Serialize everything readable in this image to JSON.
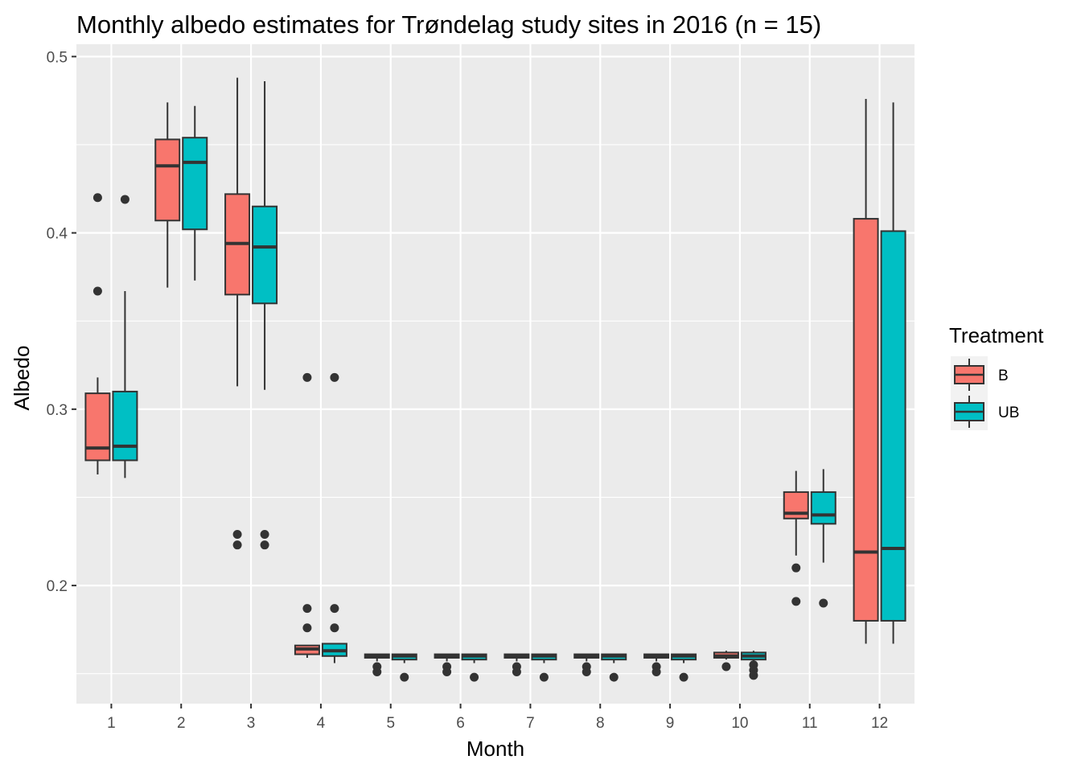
{
  "chart_data": {
    "type": "boxplot",
    "title": "Monthly albedo estimates for Trøndelag study sites in 2016 (n = 15)",
    "xlabel": "Month",
    "ylabel": "Albedo",
    "categories": [
      "1",
      "2",
      "3",
      "4",
      "5",
      "6",
      "7",
      "8",
      "9",
      "10",
      "11",
      "12"
    ],
    "ylim": [
      0.133,
      0.507
    ],
    "yticks": [
      0.2,
      0.3,
      0.4,
      0.5
    ],
    "ytick_labels": [
      "0.2",
      "0.3",
      "0.4",
      "0.5"
    ],
    "grid": true,
    "legend": {
      "title": "Treatment",
      "position": "right"
    },
    "series": [
      {
        "name": "B",
        "color": "#F8766D",
        "boxes": [
          {
            "min": 0.263,
            "q1": 0.271,
            "median": 0.278,
            "q3": 0.309,
            "max": 0.318,
            "outliers": [
              0.367,
              0.42
            ]
          },
          {
            "min": 0.369,
            "q1": 0.407,
            "median": 0.438,
            "q3": 0.453,
            "max": 0.474,
            "outliers": []
          },
          {
            "min": 0.313,
            "q1": 0.365,
            "median": 0.394,
            "q3": 0.422,
            "max": 0.488,
            "outliers": [
              0.229,
              0.223
            ]
          },
          {
            "min": 0.159,
            "q1": 0.161,
            "median": 0.164,
            "q3": 0.166,
            "max": 0.166,
            "outliers": [
              0.187,
              0.176,
              0.318
            ]
          },
          {
            "min": 0.157,
            "q1": 0.159,
            "median": 0.16,
            "q3": 0.161,
            "max": 0.161,
            "outliers": [
              0.154,
              0.151
            ]
          },
          {
            "min": 0.157,
            "q1": 0.159,
            "median": 0.16,
            "q3": 0.161,
            "max": 0.161,
            "outliers": [
              0.154,
              0.151
            ]
          },
          {
            "min": 0.157,
            "q1": 0.159,
            "median": 0.16,
            "q3": 0.161,
            "max": 0.161,
            "outliers": [
              0.154,
              0.151
            ]
          },
          {
            "min": 0.157,
            "q1": 0.159,
            "median": 0.16,
            "q3": 0.161,
            "max": 0.161,
            "outliers": [
              0.154,
              0.151
            ]
          },
          {
            "min": 0.157,
            "q1": 0.159,
            "median": 0.16,
            "q3": 0.161,
            "max": 0.161,
            "outliers": [
              0.154,
              0.151
            ]
          },
          {
            "min": 0.158,
            "q1": 0.159,
            "median": 0.16,
            "q3": 0.162,
            "max": 0.163,
            "outliers": [
              0.154
            ]
          },
          {
            "min": 0.217,
            "q1": 0.238,
            "median": 0.241,
            "q3": 0.253,
            "max": 0.265,
            "outliers": [
              0.21,
              0.191
            ]
          },
          {
            "min": 0.167,
            "q1": 0.18,
            "median": 0.219,
            "q3": 0.408,
            "max": 0.476,
            "outliers": []
          }
        ]
      },
      {
        "name": "UB",
        "color": "#00BFC4",
        "boxes": [
          {
            "min": 0.261,
            "q1": 0.271,
            "median": 0.279,
            "q3": 0.31,
            "max": 0.367,
            "outliers": [
              0.419
            ]
          },
          {
            "min": 0.373,
            "q1": 0.402,
            "median": 0.44,
            "q3": 0.454,
            "max": 0.472,
            "outliers": []
          },
          {
            "min": 0.311,
            "q1": 0.36,
            "median": 0.392,
            "q3": 0.415,
            "max": 0.486,
            "outliers": [
              0.229,
              0.223
            ]
          },
          {
            "min": 0.156,
            "q1": 0.16,
            "median": 0.163,
            "q3": 0.167,
            "max": 0.167,
            "outliers": [
              0.187,
              0.176,
              0.318
            ]
          },
          {
            "min": 0.156,
            "q1": 0.158,
            "median": 0.16,
            "q3": 0.161,
            "max": 0.161,
            "outliers": [
              0.148
            ]
          },
          {
            "min": 0.156,
            "q1": 0.158,
            "median": 0.16,
            "q3": 0.161,
            "max": 0.161,
            "outliers": [
              0.148
            ]
          },
          {
            "min": 0.156,
            "q1": 0.158,
            "median": 0.16,
            "q3": 0.161,
            "max": 0.161,
            "outliers": [
              0.148
            ]
          },
          {
            "min": 0.156,
            "q1": 0.158,
            "median": 0.16,
            "q3": 0.161,
            "max": 0.161,
            "outliers": [
              0.148
            ]
          },
          {
            "min": 0.156,
            "q1": 0.158,
            "median": 0.16,
            "q3": 0.161,
            "max": 0.161,
            "outliers": [
              0.148
            ]
          },
          {
            "min": 0.157,
            "q1": 0.158,
            "median": 0.16,
            "q3": 0.162,
            "max": 0.163,
            "outliers": [
              0.155,
              0.152,
              0.149
            ]
          },
          {
            "min": 0.213,
            "q1": 0.235,
            "median": 0.24,
            "q3": 0.253,
            "max": 0.266,
            "outliers": [
              0.19
            ]
          },
          {
            "min": 0.167,
            "q1": 0.18,
            "median": 0.221,
            "q3": 0.401,
            "max": 0.474,
            "outliers": []
          }
        ]
      }
    ]
  }
}
